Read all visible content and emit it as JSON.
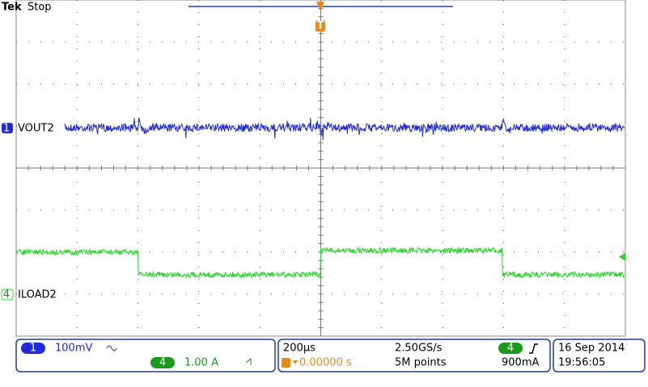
{
  "header": {
    "brand": "Tek",
    "status": "Stop",
    "trigger_marker": "T"
  },
  "channels": [
    {
      "number": "1",
      "label": "VOUT2",
      "scale": "100mV"
    },
    {
      "number": "4",
      "label": "ILOAD2",
      "scale": "1.00 A"
    }
  ],
  "timebase": {
    "scale": "200µs",
    "sample_rate": "2.50GS/s",
    "position": "0.00000 s",
    "record_length": "5M points"
  },
  "trigger": {
    "source": "4",
    "level": "900mA"
  },
  "datetime": {
    "date": "16 Sep 2014",
    "time": "19:56:05"
  }
}
